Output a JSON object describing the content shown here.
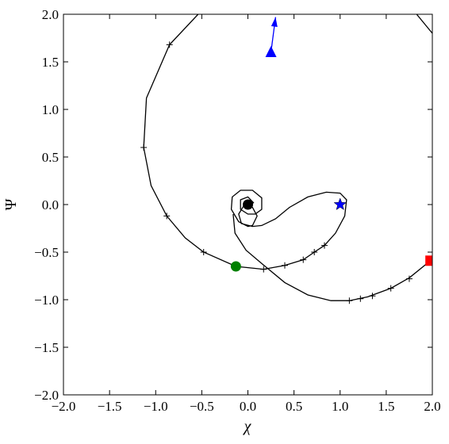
{
  "chart_data": {
    "type": "line",
    "xlabel": "χ",
    "ylabel": "Ψ",
    "xlim": [
      -2,
      2
    ],
    "ylim": [
      -2,
      2
    ],
    "xticks": [
      {
        "value": -2,
        "label": "−2.0"
      },
      {
        "value": -1.5,
        "label": "−1.5"
      },
      {
        "value": -1,
        "label": "−1.0"
      },
      {
        "value": -0.5,
        "label": "−0.5"
      },
      {
        "value": 0,
        "label": "0.0"
      },
      {
        "value": 0.5,
        "label": "0.5"
      },
      {
        "value": 1,
        "label": "1.0"
      },
      {
        "value": 1.5,
        "label": "1.5"
      },
      {
        "value": 2,
        "label": "2.0"
      }
    ],
    "yticks": [
      {
        "value": -2,
        "label": "−2.0"
      },
      {
        "value": -1.5,
        "label": "−1.5"
      },
      {
        "value": -1,
        "label": "−1.0"
      },
      {
        "value": -0.5,
        "label": "−0.5"
      },
      {
        "value": 0,
        "label": "0.0"
      },
      {
        "value": 0.5,
        "label": "0.5"
      },
      {
        "value": 1,
        "label": "1.0"
      },
      {
        "value": 1.5,
        "label": "1.5"
      },
      {
        "value": 2,
        "label": "2.0"
      }
    ],
    "grid": false,
    "series": [
      {
        "color": "#000000",
        "line": true,
        "marker": "none",
        "x": [
          -0.54,
          -0.85,
          -1.1,
          -1.13,
          -1.05,
          -0.88,
          -0.68,
          -0.48,
          -0.13,
          0.17,
          0.4,
          0.6,
          0.72,
          0.83,
          0.95,
          1.05,
          1.07,
          1.0,
          0.85,
          0.65,
          0.45,
          0.3,
          0.15,
          0.05,
          -0.07,
          -0.1,
          -0.05,
          0.05,
          0.1,
          0.05,
          0.0,
          -0.1,
          -0.18,
          -0.17,
          -0.08,
          0.05,
          0.15,
          0.15,
          0.08,
          0.0,
          -0.08,
          -0.08,
          0.0,
          0.06,
          0.0,
          null,
          -0.16,
          -0.14,
          -0.02,
          0.15,
          0.4,
          0.65,
          0.9,
          1.1,
          1.3,
          1.55,
          1.75,
          1.98,
          null,
          1.83,
          2.0
        ],
        "y": [
          2.0,
          1.68,
          1.12,
          0.6,
          0.2,
          -0.12,
          -0.35,
          -0.5,
          -0.65,
          -0.68,
          -0.64,
          -0.58,
          -0.5,
          -0.43,
          -0.3,
          -0.12,
          0.05,
          0.12,
          0.13,
          0.08,
          -0.03,
          -0.15,
          -0.22,
          -0.23,
          -0.2,
          -0.1,
          -0.02,
          -0.03,
          -0.12,
          -0.22,
          -0.23,
          -0.18,
          -0.05,
          0.08,
          0.15,
          0.15,
          0.07,
          -0.05,
          -0.1,
          -0.1,
          -0.05,
          0.05,
          0.08,
          0.02,
          -0.02,
          null,
          -0.1,
          -0.3,
          -0.48,
          -0.62,
          -0.82,
          -0.95,
          -1.01,
          -1.01,
          -0.97,
          -0.88,
          -0.77,
          -0.59,
          null,
          2.0,
          1.8
        ]
      },
      {
        "color": "#000000",
        "line": false,
        "marker": "plus",
        "x": [
          -0.85,
          -1.13,
          -0.88,
          -0.48,
          0.17,
          0.4,
          0.6,
          0.72,
          0.83,
          1.1,
          1.22,
          1.35,
          1.55,
          1.75
        ],
        "y": [
          1.68,
          0.6,
          -0.12,
          -0.5,
          -0.68,
          -0.64,
          -0.58,
          -0.5,
          -0.43,
          -1.01,
          -0.99,
          -0.96,
          -0.88,
          -0.78
        ]
      },
      {
        "color": "#000000",
        "line": false,
        "marker": "circle",
        "x": [
          0
        ],
        "y": [
          0
        ]
      },
      {
        "color": "#0000ff",
        "line": false,
        "marker": "star",
        "x": [
          1.0
        ],
        "y": [
          0.0
        ]
      },
      {
        "color": "#008000",
        "line": false,
        "marker": "circle",
        "x": [
          -0.13
        ],
        "y": [
          -0.65
        ]
      },
      {
        "color": "#ff0000",
        "line": false,
        "marker": "square",
        "x": [
          1.98
        ],
        "y": [
          -0.59
        ]
      },
      {
        "color": "#0000ff",
        "line": true,
        "marker": "arrow",
        "x": [
          0.25,
          0.3
        ],
        "y": [
          1.6,
          1.97
        ]
      },
      {
        "color": "#0000ff",
        "line": false,
        "marker": "triangle",
        "x": [
          0.25
        ],
        "y": [
          1.6
        ]
      }
    ]
  }
}
